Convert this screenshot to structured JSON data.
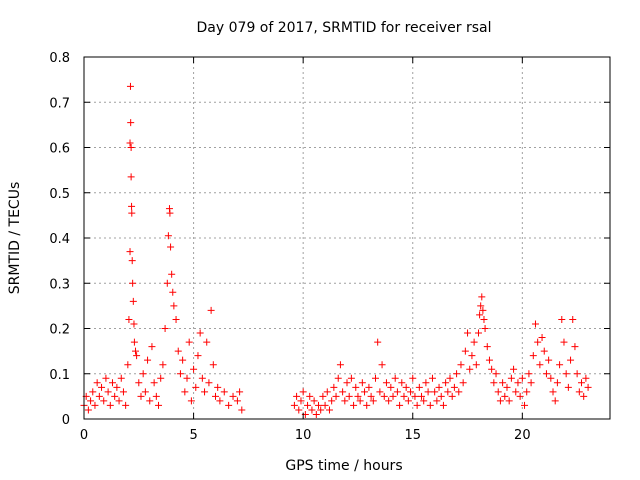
{
  "chart_data": {
    "type": "scatter",
    "title": "Day 079 of 2017, SRMTID for receiver rsal",
    "xlabel": "GPS time / hours",
    "ylabel": "SRMTID / TECUs",
    "xlim": [
      0,
      24
    ],
    "ylim": [
      0,
      0.8
    ],
    "xticks": [
      0,
      5,
      10,
      15,
      20
    ],
    "xtick_labels": [
      "0",
      "5",
      "10",
      "15",
      "20"
    ],
    "yticks": [
      0,
      0.1,
      0.2,
      0.3,
      0.4,
      0.5,
      0.6,
      0.7,
      0.8
    ],
    "ytick_labels": [
      "0",
      "0.1",
      "0.2",
      "0.3",
      "0.4",
      "0.5",
      "0.6",
      "0.7",
      "0.8"
    ],
    "grid": true,
    "marker": "plus",
    "color": "#ff0000",
    "series": [
      {
        "name": "SRMTID",
        "points": [
          [
            0.0,
            0.03
          ],
          [
            0.1,
            0.05
          ],
          [
            0.2,
            0.02
          ],
          [
            0.3,
            0.04
          ],
          [
            0.4,
            0.06
          ],
          [
            0.5,
            0.03
          ],
          [
            0.6,
            0.08
          ],
          [
            0.7,
            0.05
          ],
          [
            0.8,
            0.07
          ],
          [
            0.9,
            0.04
          ],
          [
            1.0,
            0.09
          ],
          [
            1.1,
            0.06
          ],
          [
            1.2,
            0.03
          ],
          [
            1.3,
            0.08
          ],
          [
            1.4,
            0.05
          ],
          [
            1.5,
            0.07
          ],
          [
            1.6,
            0.04
          ],
          [
            1.7,
            0.09
          ],
          [
            1.8,
            0.06
          ],
          [
            1.9,
            0.03
          ],
          [
            2.0,
            0.12
          ],
          [
            2.05,
            0.22
          ],
          [
            2.1,
            0.37
          ],
          [
            2.1,
            0.61
          ],
          [
            2.12,
            0.735
          ],
          [
            2.13,
            0.655
          ],
          [
            2.15,
            0.6
          ],
          [
            2.15,
            0.535
          ],
          [
            2.17,
            0.47
          ],
          [
            2.18,
            0.455
          ],
          [
            2.2,
            0.35
          ],
          [
            2.22,
            0.3
          ],
          [
            2.25,
            0.26
          ],
          [
            2.28,
            0.21
          ],
          [
            2.3,
            0.17
          ],
          [
            2.35,
            0.15
          ],
          [
            2.4,
            0.14
          ],
          [
            2.5,
            0.08
          ],
          [
            2.6,
            0.05
          ],
          [
            2.7,
            0.1
          ],
          [
            2.8,
            0.06
          ],
          [
            2.9,
            0.13
          ],
          [
            3.0,
            0.04
          ],
          [
            3.1,
            0.16
          ],
          [
            3.2,
            0.08
          ],
          [
            3.3,
            0.05
          ],
          [
            3.4,
            0.03
          ],
          [
            3.5,
            0.09
          ],
          [
            3.6,
            0.12
          ],
          [
            3.7,
            0.2
          ],
          [
            3.8,
            0.3
          ],
          [
            3.85,
            0.405
          ],
          [
            3.9,
            0.465
          ],
          [
            3.92,
            0.455
          ],
          [
            3.95,
            0.38
          ],
          [
            4.0,
            0.32
          ],
          [
            4.05,
            0.28
          ],
          [
            4.1,
            0.25
          ],
          [
            4.2,
            0.22
          ],
          [
            4.3,
            0.15
          ],
          [
            4.4,
            0.1
          ],
          [
            4.5,
            0.13
          ],
          [
            4.6,
            0.06
          ],
          [
            4.7,
            0.09
          ],
          [
            4.8,
            0.17
          ],
          [
            4.9,
            0.04
          ],
          [
            5.0,
            0.11
          ],
          [
            5.1,
            0.07
          ],
          [
            5.2,
            0.14
          ],
          [
            5.3,
            0.19
          ],
          [
            5.4,
            0.09
          ],
          [
            5.5,
            0.06
          ],
          [
            5.6,
            0.17
          ],
          [
            5.7,
            0.08
          ],
          [
            5.8,
            0.24
          ],
          [
            5.9,
            0.12
          ],
          [
            6.0,
            0.05
          ],
          [
            6.1,
            0.07
          ],
          [
            6.2,
            0.04
          ],
          [
            6.4,
            0.06
          ],
          [
            6.6,
            0.03
          ],
          [
            6.8,
            0.05
          ],
          [
            7.0,
            0.04
          ],
          [
            7.1,
            0.06
          ],
          [
            7.2,
            0.02
          ],
          [
            9.6,
            0.03
          ],
          [
            9.7,
            0.05
          ],
          [
            9.8,
            0.02
          ],
          [
            9.9,
            0.04
          ],
          [
            10.0,
            0.06
          ],
          [
            10.1,
            0.01
          ],
          [
            10.2,
            0.03
          ],
          [
            10.3,
            0.05
          ],
          [
            10.4,
            0.02
          ],
          [
            10.5,
            0.04
          ],
          [
            10.6,
            0.01
          ],
          [
            10.7,
            0.03
          ],
          [
            10.8,
            0.02
          ],
          [
            10.9,
            0.05
          ],
          [
            11.0,
            0.03
          ],
          [
            11.1,
            0.06
          ],
          [
            11.2,
            0.02
          ],
          [
            11.3,
            0.04
          ],
          [
            11.4,
            0.07
          ],
          [
            11.5,
            0.05
          ],
          [
            11.6,
            0.09
          ],
          [
            11.7,
            0.12
          ],
          [
            11.8,
            0.06
          ],
          [
            11.9,
            0.04
          ],
          [
            12.0,
            0.08
          ],
          [
            12.1,
            0.05
          ],
          [
            12.2,
            0.09
          ],
          [
            12.3,
            0.03
          ],
          [
            12.4,
            0.07
          ],
          [
            12.5,
            0.05
          ],
          [
            12.6,
            0.04
          ],
          [
            12.7,
            0.08
          ],
          [
            12.8,
            0.06
          ],
          [
            12.9,
            0.03
          ],
          [
            13.0,
            0.07
          ],
          [
            13.1,
            0.05
          ],
          [
            13.2,
            0.04
          ],
          [
            13.3,
            0.09
          ],
          [
            13.4,
            0.17
          ],
          [
            13.5,
            0.06
          ],
          [
            13.6,
            0.12
          ],
          [
            13.7,
            0.05
          ],
          [
            13.8,
            0.08
          ],
          [
            13.9,
            0.04
          ],
          [
            14.0,
            0.07
          ],
          [
            14.1,
            0.05
          ],
          [
            14.2,
            0.09
          ],
          [
            14.3,
            0.06
          ],
          [
            14.4,
            0.03
          ],
          [
            14.5,
            0.08
          ],
          [
            14.6,
            0.05
          ],
          [
            14.7,
            0.07
          ],
          [
            14.8,
            0.04
          ],
          [
            14.9,
            0.06
          ],
          [
            15.0,
            0.09
          ],
          [
            15.1,
            0.05
          ],
          [
            15.2,
            0.03
          ],
          [
            15.3,
            0.07
          ],
          [
            15.4,
            0.05
          ],
          [
            15.5,
            0.04
          ],
          [
            15.6,
            0.08
          ],
          [
            15.7,
            0.06
          ],
          [
            15.8,
            0.03
          ],
          [
            15.9,
            0.09
          ],
          [
            16.0,
            0.06
          ],
          [
            16.1,
            0.04
          ],
          [
            16.2,
            0.07
          ],
          [
            16.3,
            0.05
          ],
          [
            16.4,
            0.03
          ],
          [
            16.5,
            0.08
          ],
          [
            16.6,
            0.06
          ],
          [
            16.7,
            0.09
          ],
          [
            16.8,
            0.05
          ],
          [
            16.9,
            0.07
          ],
          [
            17.0,
            0.1
          ],
          [
            17.1,
            0.06
          ],
          [
            17.2,
            0.12
          ],
          [
            17.3,
            0.08
          ],
          [
            17.4,
            0.15
          ],
          [
            17.5,
            0.19
          ],
          [
            17.6,
            0.11
          ],
          [
            17.7,
            0.14
          ],
          [
            17.8,
            0.17
          ],
          [
            17.9,
            0.12
          ],
          [
            18.0,
            0.19
          ],
          [
            18.05,
            0.23
          ],
          [
            18.1,
            0.25
          ],
          [
            18.15,
            0.27
          ],
          [
            18.2,
            0.24
          ],
          [
            18.25,
            0.22
          ],
          [
            18.3,
            0.2
          ],
          [
            18.4,
            0.16
          ],
          [
            18.5,
            0.13
          ],
          [
            18.6,
            0.11
          ],
          [
            18.7,
            0.08
          ],
          [
            18.8,
            0.1
          ],
          [
            18.9,
            0.06
          ],
          [
            19.0,
            0.04
          ],
          [
            19.1,
            0.08
          ],
          [
            19.2,
            0.05
          ],
          [
            19.3,
            0.07
          ],
          [
            19.4,
            0.04
          ],
          [
            19.5,
            0.09
          ],
          [
            19.6,
            0.11
          ],
          [
            19.7,
            0.06
          ],
          [
            19.8,
            0.08
          ],
          [
            19.9,
            0.05
          ],
          [
            20.0,
            0.09
          ],
          [
            20.1,
            0.03
          ],
          [
            20.2,
            0.06
          ],
          [
            20.3,
            0.1
          ],
          [
            20.4,
            0.08
          ],
          [
            20.5,
            0.14
          ],
          [
            20.6,
            0.21
          ],
          [
            20.7,
            0.17
          ],
          [
            20.8,
            0.12
          ],
          [
            20.9,
            0.18
          ],
          [
            21.0,
            0.15
          ],
          [
            21.1,
            0.1
          ],
          [
            21.2,
            0.13
          ],
          [
            21.3,
            0.09
          ],
          [
            21.4,
            0.06
          ],
          [
            21.5,
            0.04
          ],
          [
            21.6,
            0.08
          ],
          [
            21.7,
            0.12
          ],
          [
            21.8,
            0.22
          ],
          [
            21.9,
            0.17
          ],
          [
            22.0,
            0.1
          ],
          [
            22.1,
            0.07
          ],
          [
            22.2,
            0.13
          ],
          [
            22.3,
            0.22
          ],
          [
            22.4,
            0.16
          ],
          [
            22.5,
            0.1
          ],
          [
            22.6,
            0.06
          ],
          [
            22.7,
            0.08
          ],
          [
            22.8,
            0.05
          ],
          [
            22.9,
            0.09
          ],
          [
            23.0,
            0.07
          ]
        ]
      }
    ]
  }
}
